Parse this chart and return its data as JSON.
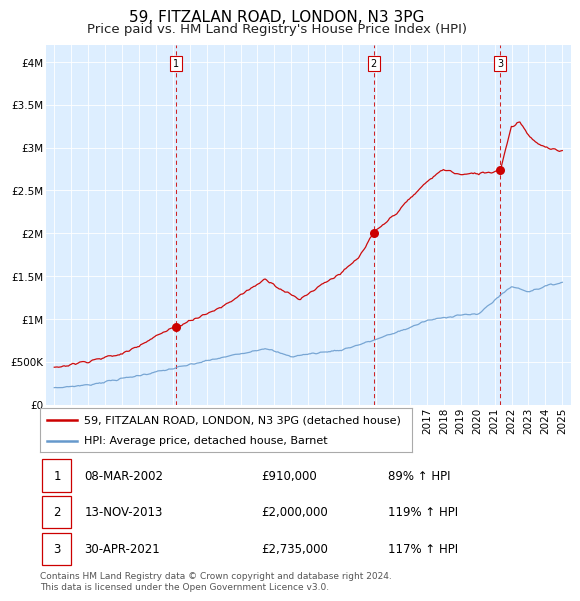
{
  "title": "59, FITZALAN ROAD, LONDON, N3 3PG",
  "subtitle": "Price paid vs. HM Land Registry's House Price Index (HPI)",
  "xlim": [
    1994.5,
    2025.5
  ],
  "ylim": [
    0,
    4200000
  ],
  "yticks": [
    0,
    500000,
    1000000,
    1500000,
    2000000,
    2500000,
    3000000,
    3500000,
    4000000
  ],
  "ytick_labels": [
    "£0",
    "£500K",
    "£1M",
    "£1.5M",
    "£2M",
    "£2.5M",
    "£3M",
    "£3.5M",
    "£4M"
  ],
  "background_color": "#ddeeff",
  "red_line_color": "#cc0000",
  "blue_line_color": "#6699cc",
  "dashed_line_color": "#cc0000",
  "sale_points": [
    {
      "year": 2002.19,
      "price": 910000,
      "label": "1"
    },
    {
      "year": 2013.87,
      "price": 2000000,
      "label": "2"
    },
    {
      "year": 2021.33,
      "price": 2735000,
      "label": "3"
    }
  ],
  "legend_red": "59, FITZALAN ROAD, LONDON, N3 3PG (detached house)",
  "legend_blue": "HPI: Average price, detached house, Barnet",
  "table_rows": [
    {
      "num": "1",
      "date": "08-MAR-2002",
      "price": "£910,000",
      "hpi": "89% ↑ HPI"
    },
    {
      "num": "2",
      "date": "13-NOV-2013",
      "price": "£2,000,000",
      "hpi": "119% ↑ HPI"
    },
    {
      "num": "3",
      "date": "30-APR-2021",
      "price": "£2,735,000",
      "hpi": "117% ↑ HPI"
    }
  ],
  "footnote": "Contains HM Land Registry data © Crown copyright and database right 2024.\nThis data is licensed under the Open Government Licence v3.0.",
  "title_fontsize": 11,
  "subtitle_fontsize": 9.5,
  "tick_fontsize": 7.5,
  "legend_fontsize": 8,
  "table_fontsize": 8.5,
  "footnote_fontsize": 6.5
}
